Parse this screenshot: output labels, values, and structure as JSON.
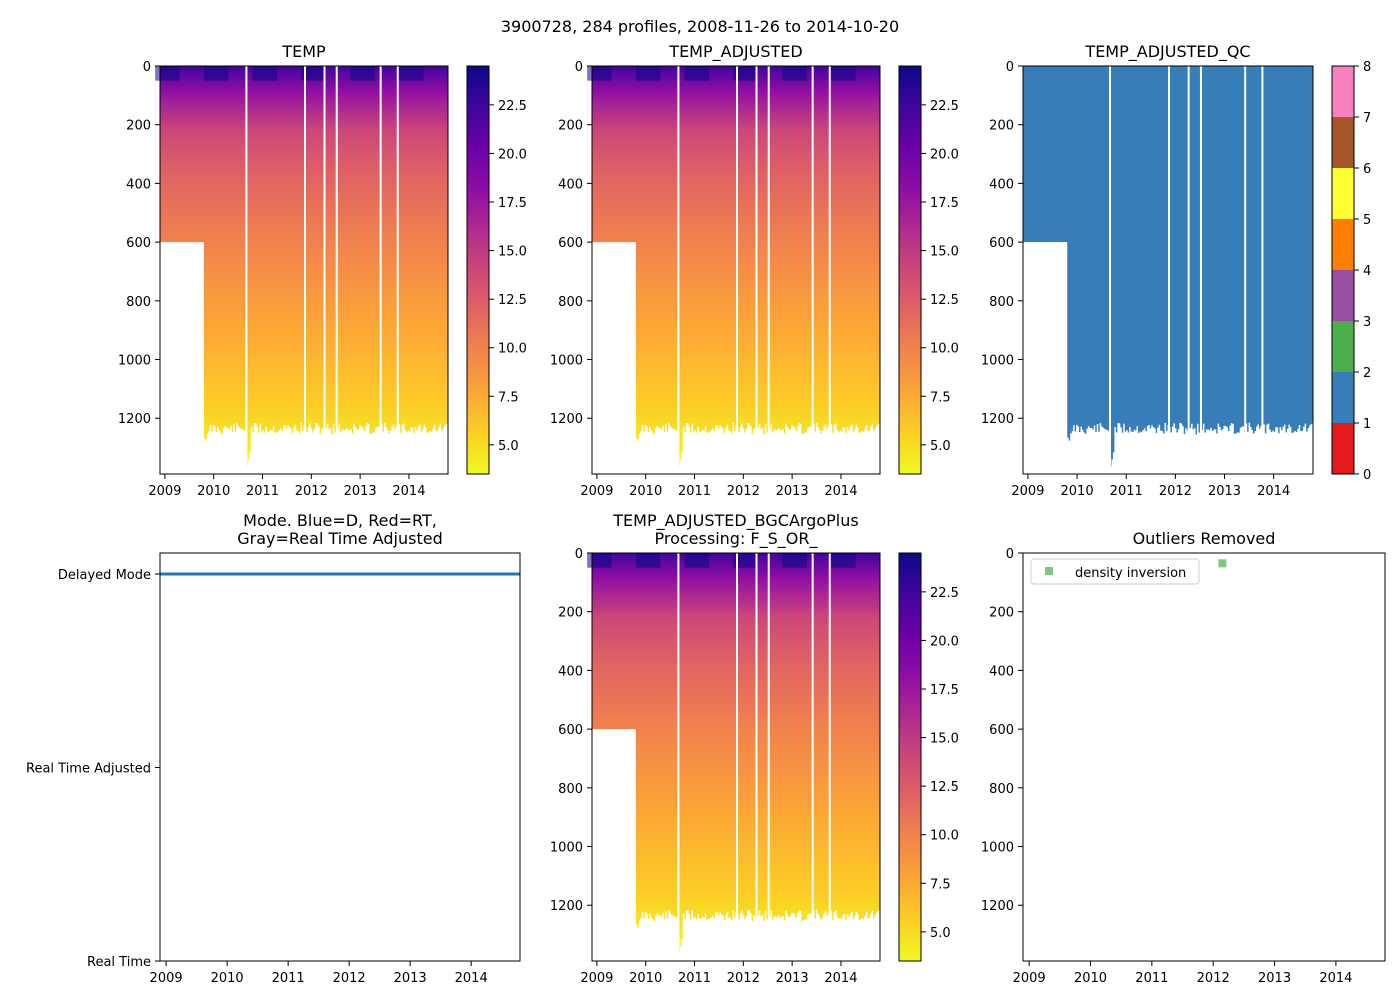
{
  "figure_title": "3900728, 284 profiles, 2008-11-26 to 2014-10-20",
  "colors": {
    "plasma": [
      "#0d0887",
      "#41049d",
      "#6a00a8",
      "#8f0da4",
      "#b12a90",
      "#cc4778",
      "#e16462",
      "#f2844b",
      "#fca636",
      "#fcce25",
      "#f0f921"
    ],
    "qc": [
      "#e41a1c",
      "#377eb8",
      "#4daf4a",
      "#984ea3",
      "#ff7f00",
      "#ffff33",
      "#a65628",
      "#f781bf",
      "#999999"
    ],
    "mode_line": "#1f77b4",
    "outlier_marker": "#7fc97f"
  },
  "chart_data": [
    {
      "type": "heatmap",
      "title": "TEMP",
      "xlim": [
        2008.9,
        2014.8
      ],
      "x_ticks": [
        "2009",
        "2010",
        "2011",
        "2012",
        "2013",
        "2014"
      ],
      "ylim": [
        1390,
        0
      ],
      "y_ticks": [
        "0",
        "200",
        "400",
        "600",
        "800",
        "1000",
        "1200"
      ],
      "colorbar": {
        "range": [
          3.5,
          24.5
        ],
        "ticks": [
          "5.0",
          "7.5",
          "10.0",
          "12.5",
          "15.0",
          "17.5",
          "20.0",
          "22.5"
        ]
      },
      "shallow_depth_until_2009_8": 600,
      "typical_max_depth": 1230,
      "gaps": [
        2010.65,
        2011.85,
        2012.25,
        2012.5,
        2013.4,
        2013.75
      ]
    },
    {
      "type": "heatmap",
      "title": "TEMP_ADJUSTED",
      "xlim": [
        2008.9,
        2014.8
      ],
      "x_ticks": [
        "2009",
        "2010",
        "2011",
        "2012",
        "2013",
        "2014"
      ],
      "ylim": [
        1390,
        0
      ],
      "y_ticks": [
        "0",
        "200",
        "400",
        "600",
        "800",
        "1000",
        "1200"
      ],
      "colorbar": {
        "range": [
          3.5,
          24.5
        ],
        "ticks": [
          "5.0",
          "7.5",
          "10.0",
          "12.5",
          "15.0",
          "17.5",
          "20.0",
          "22.5"
        ]
      },
      "gaps": [
        2010.65,
        2011.85,
        2012.25,
        2012.5,
        2013.4,
        2013.75
      ]
    },
    {
      "type": "heatmap",
      "title": "TEMP_ADJUSTED_QC",
      "xlim": [
        2008.9,
        2014.8
      ],
      "x_ticks": [
        "2009",
        "2010",
        "2011",
        "2012",
        "2013",
        "2014"
      ],
      "ylim": [
        1390,
        0
      ],
      "y_ticks": [
        "0",
        "200",
        "400",
        "600",
        "800",
        "1000",
        "1200"
      ],
      "colorbar": {
        "range": [
          0,
          8
        ],
        "ticks": [
          "0",
          "1",
          "2",
          "3",
          "4",
          "5",
          "6",
          "7",
          "8"
        ]
      },
      "qc_value_all": 1,
      "gaps": [
        2010.65,
        2011.85,
        2012.25,
        2012.5,
        2013.4,
        2013.75
      ]
    },
    {
      "type": "line",
      "title_line1": "Mode. Blue=D, Red=RT,",
      "title_line2": "Gray=Real Time Adjusted",
      "xlim": [
        2008.9,
        2014.8
      ],
      "x_ticks": [
        "2009",
        "2010",
        "2011",
        "2012",
        "2013",
        "2014"
      ],
      "y_categories": [
        "Delayed Mode",
        "Real Time Adjusted",
        "Real Time"
      ],
      "series": [
        {
          "name": "Delayed Mode",
          "y": "Delayed Mode",
          "x_range": [
            2008.9,
            2014.8
          ]
        }
      ]
    },
    {
      "type": "heatmap",
      "title_line1": "TEMP_ADJUSTED_BGCArgoPlus",
      "title_line2": "Processing: F_S_OR_",
      "xlim": [
        2008.9,
        2014.8
      ],
      "x_ticks": [
        "2009",
        "2010",
        "2011",
        "2012",
        "2013",
        "2014"
      ],
      "ylim": [
        1390,
        0
      ],
      "y_ticks": [
        "0",
        "200",
        "400",
        "600",
        "800",
        "1000",
        "1200"
      ],
      "colorbar": {
        "range": [
          3.5,
          24.5
        ],
        "ticks": [
          "5.0",
          "7.5",
          "10.0",
          "12.5",
          "15.0",
          "17.5",
          "20.0",
          "22.5"
        ]
      },
      "gaps": [
        2010.65,
        2011.85,
        2012.25,
        2012.5,
        2013.4,
        2013.75
      ]
    },
    {
      "type": "scatter",
      "title": "Outliers Removed",
      "xlim": [
        2008.9,
        2014.8
      ],
      "x_ticks": [
        "2009",
        "2010",
        "2011",
        "2012",
        "2013",
        "2014"
      ],
      "ylim": [
        1390,
        0
      ],
      "y_ticks": [
        "0",
        "200",
        "400",
        "600",
        "800",
        "1000",
        "1200"
      ],
      "legend": {
        "label": "density inversion",
        "placement": "top-left"
      },
      "points": [
        {
          "x": 2012.15,
          "y": 35
        }
      ]
    }
  ]
}
